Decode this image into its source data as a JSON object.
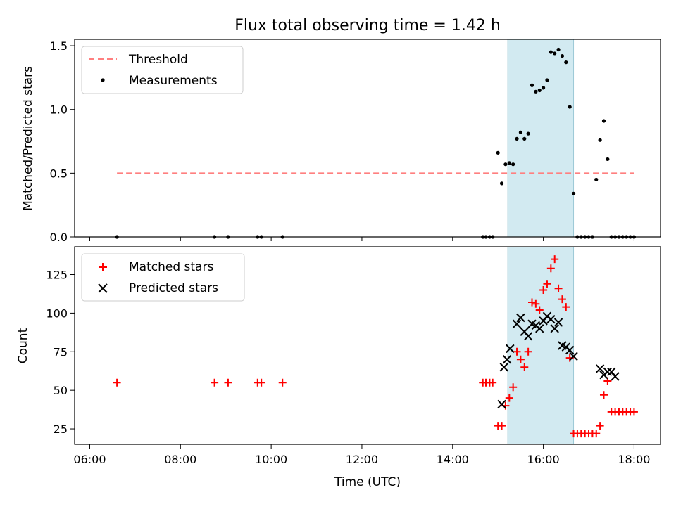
{
  "chart_data": [
    {
      "type": "scatter",
      "title": "Flux total observing time = 1.42 h",
      "xlabel": "",
      "ylabel": "Matched/Predicted stars",
      "xlim": [
        "05:40",
        "18:35"
      ],
      "ylim": [
        0,
        1.55
      ],
      "yticks": [
        0.0,
        0.5,
        1.0,
        1.5
      ],
      "ytick_labels": [
        "0.0",
        "0.5",
        "1.0",
        "1.5"
      ],
      "grid": false,
      "legend": "top-left",
      "shaded_span": {
        "start": "15:13",
        "end": "16:40",
        "color": "#add8e6"
      },
      "series": [
        {
          "name": "Threshold",
          "kind": "dashed-line",
          "color": "#ff7f7f",
          "x": [
            "06:36",
            "18:00"
          ],
          "y": [
            0.5,
            0.5
          ]
        },
        {
          "name": "Measurements",
          "kind": "points",
          "color": "#000000",
          "x": [
            "06:36",
            "08:45",
            "09:03",
            "09:42",
            "09:47",
            "10:15",
            "14:40",
            "14:44",
            "14:49",
            "14:53",
            "15:00",
            "15:05",
            "15:10",
            "15:15",
            "15:20",
            "15:25",
            "15:30",
            "15:35",
            "15:40",
            "15:45",
            "15:50",
            "15:55",
            "16:00",
            "16:05",
            "16:10",
            "16:15",
            "16:20",
            "16:25",
            "16:30",
            "16:35",
            "16:40",
            "16:45",
            "16:50",
            "16:55",
            "17:00",
            "17:05",
            "17:10",
            "17:15",
            "17:20",
            "17:25",
            "17:30",
            "17:35",
            "17:40",
            "17:45",
            "17:50",
            "17:55",
            "18:00"
          ],
          "y": [
            0,
            0,
            0,
            0,
            0,
            0,
            0,
            0,
            0,
            0,
            0.66,
            0.42,
            0.57,
            0.58,
            0.57,
            0.77,
            0.82,
            0.77,
            0.81,
            1.19,
            1.14,
            1.15,
            1.17,
            1.23,
            1.45,
            1.44,
            1.47,
            1.42,
            1.37,
            1.02,
            0.34,
            0,
            0,
            0,
            0,
            0,
            0.45,
            0.76,
            0.91,
            0.61,
            0,
            0,
            0,
            0,
            0,
            0,
            0
          ]
        }
      ]
    },
    {
      "type": "scatter",
      "title": "",
      "xlabel": "Time (UTC)",
      "ylabel": "Count",
      "xlim": [
        "05:40",
        "18:35"
      ],
      "ylim": [
        15,
        143
      ],
      "yticks": [
        25,
        50,
        75,
        100,
        125
      ],
      "ytick_labels": [
        "25",
        "50",
        "75",
        "100",
        "125"
      ],
      "xticks": [
        "06:00",
        "08:00",
        "10:00",
        "12:00",
        "14:00",
        "16:00",
        "18:00"
      ],
      "xtick_labels": [
        "06:00",
        "08:00",
        "10:00",
        "12:00",
        "14:00",
        "16:00",
        "18:00"
      ],
      "grid": false,
      "legend": "top-left",
      "shaded_span": {
        "start": "15:13",
        "end": "16:40",
        "color": "#add8e6"
      },
      "series": [
        {
          "name": "Matched stars",
          "kind": "plus",
          "color": "#ff0000",
          "x": [
            "06:36",
            "08:45",
            "09:03",
            "09:42",
            "09:47",
            "10:15",
            "14:40",
            "14:44",
            "14:49",
            "14:53",
            "15:00",
            "15:05",
            "15:10",
            "15:15",
            "15:20",
            "15:25",
            "15:30",
            "15:35",
            "15:40",
            "15:45",
            "15:50",
            "15:55",
            "16:00",
            "16:05",
            "16:10",
            "16:15",
            "16:20",
            "16:25",
            "16:30",
            "16:35",
            "16:40",
            "16:45",
            "16:50",
            "16:55",
            "17:00",
            "17:05",
            "17:10",
            "17:15",
            "17:20",
            "17:25",
            "17:30",
            "17:35",
            "17:40",
            "17:45",
            "17:50",
            "17:55",
            "18:00"
          ],
          "y": [
            55,
            55,
            55,
            55,
            55,
            55,
            55,
            55,
            55,
            55,
            27,
            27,
            40,
            45,
            52,
            75,
            70,
            65,
            75,
            107,
            106,
            102,
            115,
            119,
            129,
            135,
            116,
            109,
            104,
            71,
            22,
            22,
            22,
            22,
            22,
            22,
            22,
            27,
            47,
            56,
            36,
            36,
            36,
            36,
            36,
            36,
            36
          ]
        },
        {
          "name": "Predicted stars",
          "kind": "x",
          "color": "#000000",
          "x": [
            "15:05",
            "15:08",
            "15:12",
            "15:16",
            "15:25",
            "15:30",
            "15:35",
            "15:40",
            "15:45",
            "15:50",
            "15:55",
            "16:00",
            "16:05",
            "16:10",
            "16:15",
            "16:20",
            "16:25",
            "16:30",
            "16:35",
            "16:40",
            "17:15",
            "17:20",
            "17:25",
            "17:30",
            "17:35"
          ],
          "y": [
            41,
            65,
            70,
            77,
            93,
            97,
            88,
            85,
            93,
            92,
            90,
            95,
            98,
            96,
            90,
            94,
            79,
            78,
            76,
            72,
            64,
            60,
            62,
            62,
            59
          ]
        }
      ]
    }
  ]
}
